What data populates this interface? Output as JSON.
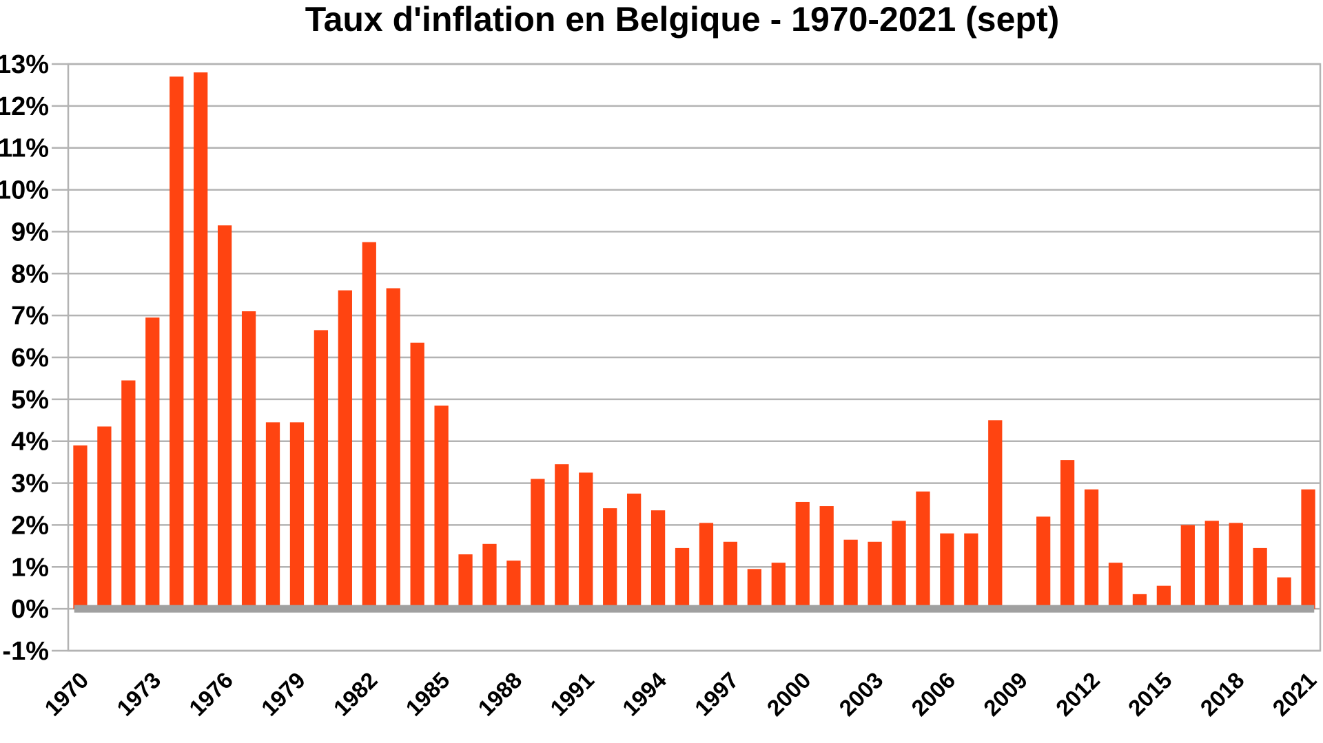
{
  "chart_data": {
    "type": "bar",
    "title": "Taux d'inflation en Belgique - 1970-2021 (sept)",
    "xlabel": "",
    "ylabel": "",
    "ylim": [
      -1,
      13
    ],
    "y_ticks": [
      "-1%",
      "0%",
      "1%",
      "2%",
      "3%",
      "4%",
      "5%",
      "6%",
      "7%",
      "8%",
      "9%",
      "10%",
      "11%",
      "12%",
      "13%"
    ],
    "x_tick_labels": [
      "1970",
      "1973",
      "1976",
      "1979",
      "1982",
      "1985",
      "1988",
      "1991",
      "1994",
      "1997",
      "2000",
      "2003",
      "2006",
      "2009",
      "2012",
      "2015",
      "2018",
      "2021"
    ],
    "categories": [
      "1970",
      "1971",
      "1972",
      "1973",
      "1974",
      "1975",
      "1976",
      "1977",
      "1978",
      "1979",
      "1980",
      "1981",
      "1982",
      "1983",
      "1984",
      "1985",
      "1986",
      "1987",
      "1988",
      "1989",
      "1990",
      "1991",
      "1992",
      "1993",
      "1994",
      "1995",
      "1996",
      "1997",
      "1998",
      "1999",
      "2000",
      "2001",
      "2002",
      "2003",
      "2004",
      "2005",
      "2006",
      "2007",
      "2008",
      "2009",
      "2010",
      "2011",
      "2012",
      "2013",
      "2014",
      "2015",
      "2016",
      "2017",
      "2018",
      "2019",
      "2020",
      "2021"
    ],
    "values": [
      3.9,
      4.35,
      5.45,
      6.95,
      12.7,
      12.8,
      9.15,
      7.1,
      4.45,
      4.45,
      6.65,
      7.6,
      8.75,
      7.65,
      6.35,
      4.85,
      1.3,
      1.55,
      1.15,
      3.1,
      3.45,
      3.25,
      2.4,
      2.75,
      2.35,
      1.45,
      2.05,
      1.6,
      0.95,
      1.1,
      2.55,
      2.45,
      1.65,
      1.6,
      2.1,
      2.8,
      1.8,
      1.8,
      4.5,
      -0.05,
      2.2,
      3.55,
      2.85,
      1.1,
      0.35,
      0.55,
      2.0,
      2.1,
      2.05,
      1.45,
      0.75,
      2.85
    ],
    "bar_color": "#ff4411",
    "zero_line_color": "#a0a0a0",
    "grid": true,
    "legend": "none"
  }
}
